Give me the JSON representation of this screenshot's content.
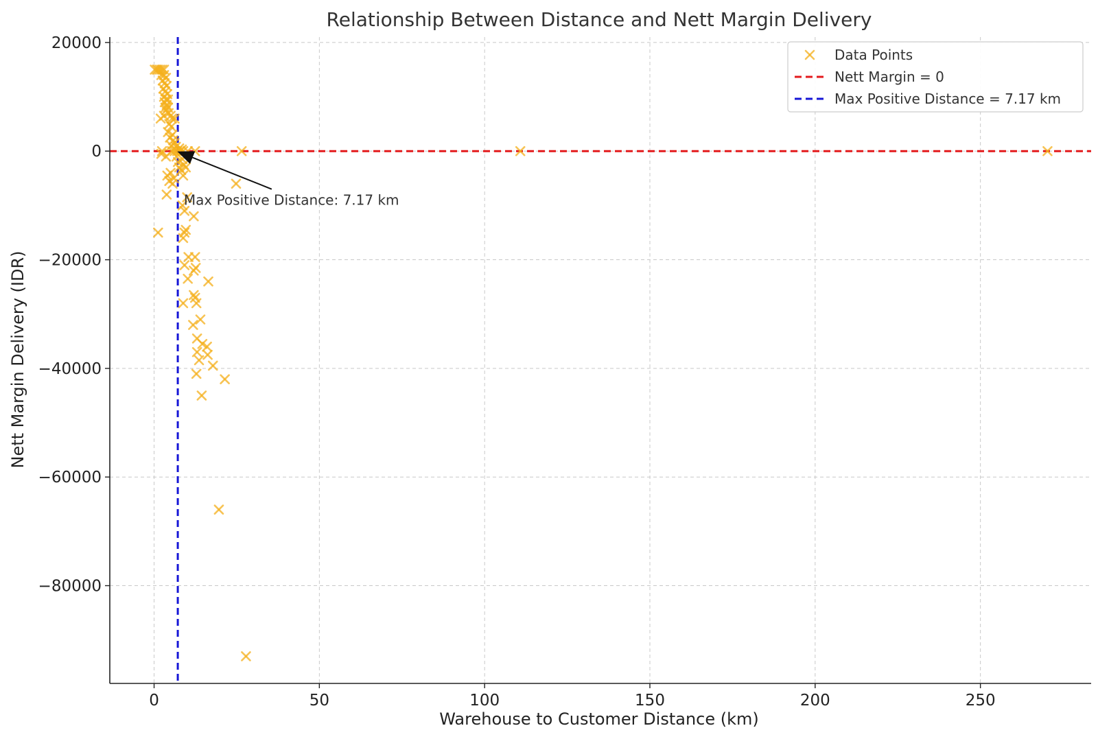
{
  "chart_data": {
    "type": "scatter",
    "title": "Relationship Between Distance and Nett Margin Delivery",
    "xlabel": "Warehouse to Customer Distance (km)",
    "ylabel": "Nett Margin Delivery (IDR)",
    "xlim": [
      -13.4,
      283.5
    ],
    "ylim": [
      -98000,
      21000
    ],
    "xticks": [
      0,
      50,
      100,
      150,
      200,
      250
    ],
    "xtick_labels": [
      "0",
      "50",
      "100",
      "150",
      "200",
      "250"
    ],
    "yticks": [
      20000,
      0,
      -20000,
      -40000,
      -60000,
      -80000
    ],
    "ytick_labels": [
      "20000",
      "0",
      "−20000",
      "−40000",
      "−60000",
      "−80000"
    ],
    "grid": true,
    "legend_position": "top-right",
    "colors": {
      "points": "#f5b01b",
      "zero_line": "#e31a1c",
      "max_line": "#1515d6"
    },
    "series": [
      {
        "name": "Data Points",
        "marker": "x",
        "points": [
          [
            0.2,
            15000
          ],
          [
            0.8,
            15000
          ],
          [
            1.2,
            15000
          ],
          [
            1.8,
            15000
          ],
          [
            2.4,
            15000
          ],
          [
            3.0,
            15000
          ],
          [
            2.2,
            14000
          ],
          [
            3.0,
            14000
          ],
          [
            3.6,
            13500
          ],
          [
            2.6,
            13000
          ],
          [
            3.2,
            12500
          ],
          [
            3.8,
            12000
          ],
          [
            2.8,
            11500
          ],
          [
            3.4,
            11000
          ],
          [
            4.0,
            10500
          ],
          [
            3.0,
            10000
          ],
          [
            3.6,
            9500
          ],
          [
            4.2,
            9500
          ],
          [
            3.2,
            9000
          ],
          [
            3.8,
            8500
          ],
          [
            3.4,
            8000
          ],
          [
            4.2,
            8000
          ],
          [
            3.6,
            7500
          ],
          [
            4.4,
            7000
          ],
          [
            2.0,
            6000
          ],
          [
            3.0,
            6500
          ],
          [
            5.0,
            6500
          ],
          [
            5.4,
            6000
          ],
          [
            6.2,
            6000
          ],
          [
            4.6,
            5000
          ],
          [
            5.2,
            4500
          ],
          [
            4.2,
            3500
          ],
          [
            5.6,
            3000
          ],
          [
            4.8,
            2500
          ],
          [
            5.8,
            2000
          ],
          [
            6.2,
            1500
          ],
          [
            5.2,
            1000
          ],
          [
            6.6,
            800
          ],
          [
            7.6,
            500
          ],
          [
            8.4,
            300
          ],
          [
            5.4,
            0
          ],
          [
            6.2,
            0
          ],
          [
            7.0,
            0
          ],
          [
            7.8,
            0
          ],
          [
            8.8,
            0
          ],
          [
            10.2,
            0
          ],
          [
            12.4,
            0
          ],
          [
            2.4,
            0
          ],
          [
            26.5,
            0
          ],
          [
            110.8,
            0
          ],
          [
            270.3,
            0
          ],
          [
            2.2,
            -500
          ],
          [
            3.6,
            -1000
          ],
          [
            6.8,
            -1000
          ],
          [
            8.6,
            -1500
          ],
          [
            7.2,
            -2000
          ],
          [
            9.0,
            -2500
          ],
          [
            7.6,
            -3000
          ],
          [
            8.2,
            -3500
          ],
          [
            9.6,
            -3000
          ],
          [
            4.0,
            -4500
          ],
          [
            5.0,
            -4000
          ],
          [
            6.0,
            -5000
          ],
          [
            8.8,
            -4500
          ],
          [
            4.6,
            -5500
          ],
          [
            5.6,
            -6000
          ],
          [
            24.8,
            -6000
          ],
          [
            3.8,
            -8000
          ],
          [
            10.0,
            -8500
          ],
          [
            8.6,
            -10000
          ],
          [
            9.2,
            -11000
          ],
          [
            12.0,
            -12000
          ],
          [
            9.6,
            -14500
          ],
          [
            9.2,
            -15000
          ],
          [
            1.2,
            -15000
          ],
          [
            8.8,
            -16000
          ],
          [
            10.4,
            -19500
          ],
          [
            12.4,
            -19500
          ],
          [
            9.2,
            -21000
          ],
          [
            12.6,
            -21500
          ],
          [
            12.0,
            -22000
          ],
          [
            10.2,
            -23500
          ],
          [
            16.4,
            -24000
          ],
          [
            12.0,
            -26500
          ],
          [
            12.4,
            -27000
          ],
          [
            8.8,
            -28000
          ],
          [
            12.8,
            -28000
          ],
          [
            14.0,
            -31000
          ],
          [
            11.8,
            -32000
          ],
          [
            13.0,
            -34500
          ],
          [
            14.6,
            -35500
          ],
          [
            16.0,
            -36000
          ],
          [
            13.0,
            -37000
          ],
          [
            16.2,
            -37500
          ],
          [
            13.6,
            -38500
          ],
          [
            17.8,
            -39500
          ],
          [
            12.8,
            -41000
          ],
          [
            21.4,
            -42000
          ],
          [
            14.4,
            -45000
          ],
          [
            19.6,
            -66000
          ],
          [
            27.8,
            -93000
          ]
        ]
      }
    ],
    "reference_lines": [
      {
        "name": "Nett Margin = 0",
        "orientation": "horizontal",
        "value": 0,
        "style": "dashed"
      },
      {
        "name": "Max Positive Distance = 7.17 km",
        "orientation": "vertical",
        "value": 7.17,
        "style": "dashed"
      }
    ],
    "annotation": {
      "text": "Max Positive Distance: 7.17 km",
      "point": [
        7.17,
        0
      ],
      "text_at": [
        9.0,
        -9000
      ]
    }
  }
}
